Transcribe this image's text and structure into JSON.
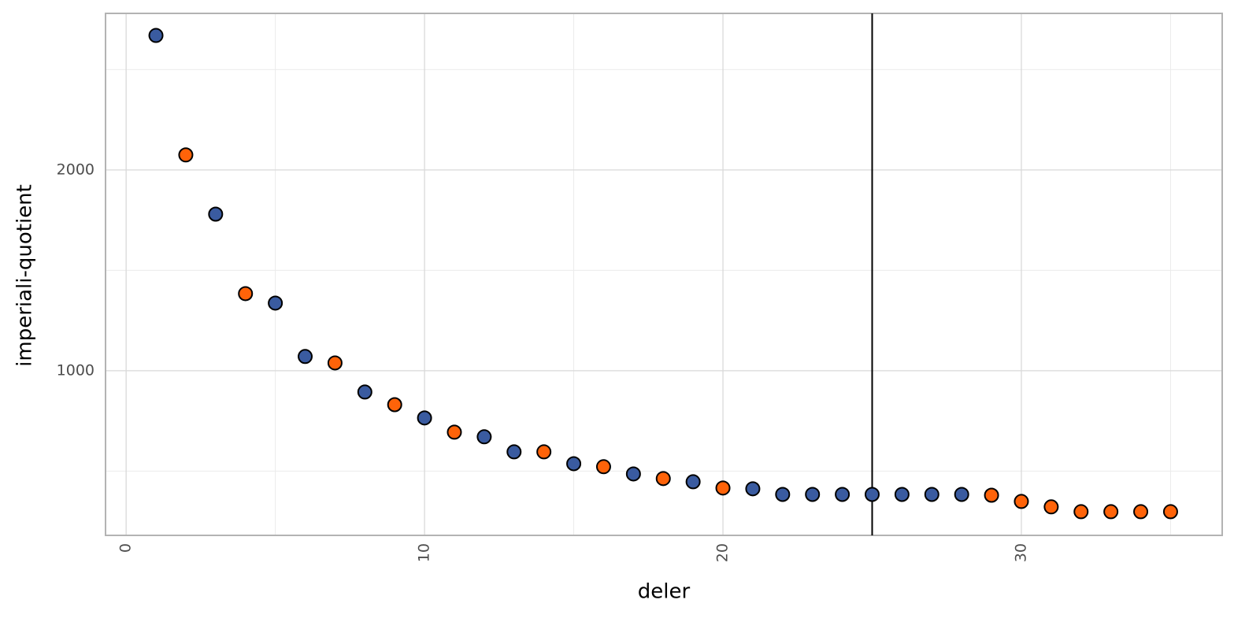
{
  "chart_data": {
    "type": "scatter",
    "x_label": "deler",
    "y_label": "imperiali-quotient",
    "x": [
      1,
      2,
      3,
      4,
      5,
      6,
      7,
      8,
      9,
      10,
      11,
      12,
      13,
      14,
      15,
      16,
      17,
      18,
      19,
      20,
      21,
      22,
      23,
      24,
      25,
      26,
      27,
      28,
      29,
      30,
      31,
      32,
      33,
      34,
      35
    ],
    "values": [
      2670,
      2075,
      1780,
      1384,
      1337,
      1071,
      1039,
      894,
      831,
      765,
      694,
      671,
      596,
      596,
      537,
      522,
      486,
      463,
      447,
      416,
      412,
      384,
      384,
      384,
      384,
      384,
      384,
      384,
      380,
      349,
      322,
      298,
      298,
      298,
      298
    ],
    "colors": [
      "#3a5ba0",
      "#ff6309",
      "#3a5ba0",
      "#ff6309",
      "#3a5ba0",
      "#3a5ba0",
      "#ff6309",
      "#3a5ba0",
      "#ff6309",
      "#3a5ba0",
      "#ff6309",
      "#3a5ba0",
      "#3a5ba0",
      "#ff6309",
      "#3a5ba0",
      "#ff6309",
      "#3a5ba0",
      "#ff6309",
      "#3a5ba0",
      "#ff6309",
      "#3a5ba0",
      "#3a5ba0",
      "#3a5ba0",
      "#3a5ba0",
      "#3a5ba0",
      "#3a5ba0",
      "#3a5ba0",
      "#3a5ba0",
      "#ff6309",
      "#ff6309",
      "#ff6309",
      "#ff6309",
      "#ff6309",
      "#ff6309",
      "#ff6309"
    ],
    "xlim": [
      -0.69,
      36.73
    ],
    "ylim": [
      180,
      2780
    ],
    "xticks": [
      0,
      10,
      20,
      30
    ],
    "yticks": [
      1000,
      2000
    ],
    "x_minor_grid": [
      5,
      15,
      25,
      35
    ],
    "y_minor_grid": [
      500,
      1500,
      2500
    ],
    "vline": 25,
    "grid": true
  }
}
